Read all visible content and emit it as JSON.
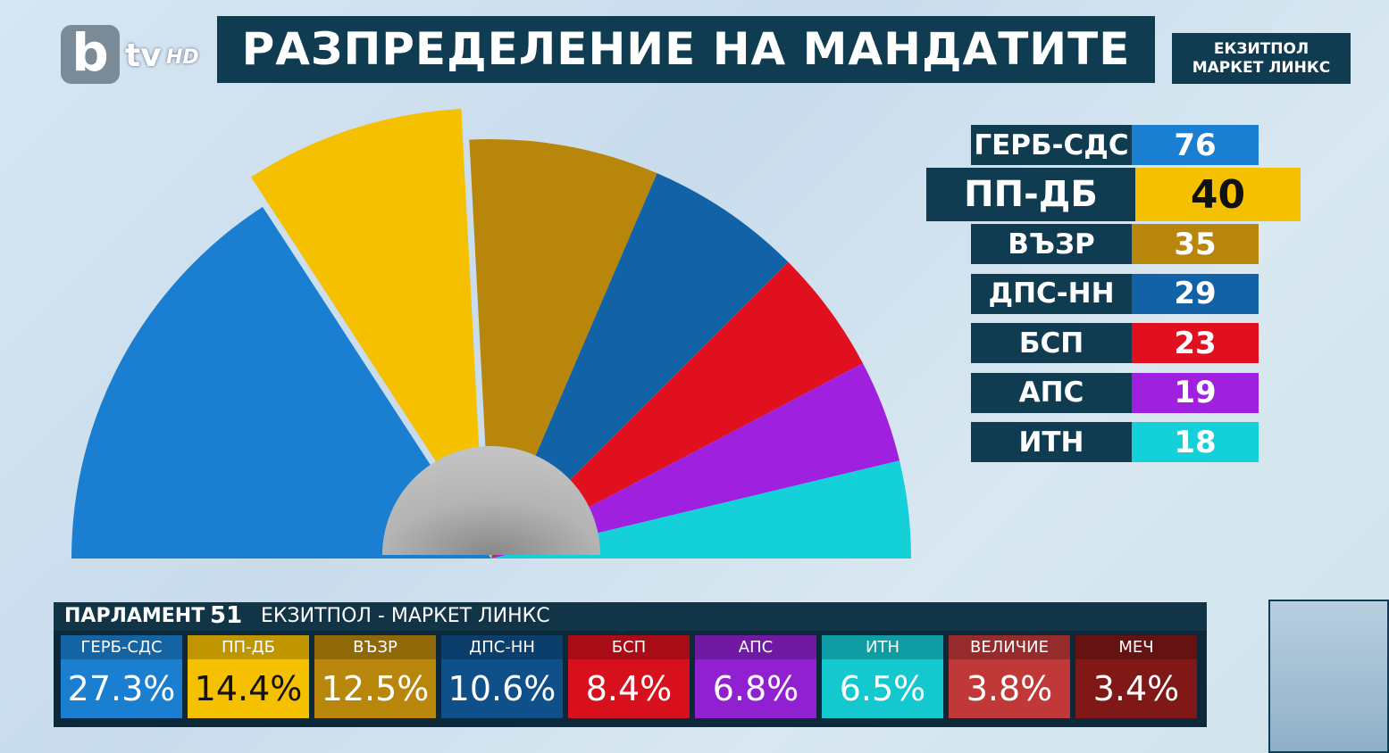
{
  "header": {
    "logo": "b",
    "logo_suffix": "tv",
    "logo_hd": "HD",
    "title": "РАЗПРЕДЕЛЕНИЕ НА МАНДАТИТЕ",
    "badge": [
      "ЕКЗИТПОЛ",
      "МАРКЕТ ЛИНКС"
    ]
  },
  "chart_data": {
    "type": "pie",
    "half": true,
    "categories": [
      "ГЕРБ-СДС",
      "ПП-ДБ",
      "ВЪЗР",
      "ДПС-НН",
      "БСП",
      "АПС",
      "ИТН"
    ],
    "values": [
      76,
      40,
      35,
      29,
      23,
      19,
      18
    ],
    "colors": [
      "#1a7fd0",
      "#f5c000",
      "#b8860b",
      "#1262a8",
      "#e0101e",
      "#a020e0",
      "#14d0d8"
    ]
  },
  "ticker": {
    "label": "ПАРЛАМЕНТ",
    "number": "51",
    "source": "ЕКЗИТПОЛ - МАРКЕТ ЛИНКС",
    "items": [
      {
        "name": "ГЕРБ-СДС",
        "share": "27.3%",
        "color": "#1a7fd0"
      },
      {
        "name": "ПП-ДБ",
        "share": "14.4%",
        "color": "#f5c000"
      },
      {
        "name": "ВЪЗР",
        "share": "12.5%",
        "color": "#b8860b"
      },
      {
        "name": "ДПС-НН",
        "share": "10.6%",
        "color": "#10508a"
      },
      {
        "name": "БСП",
        "share": "8.4%",
        "color": "#d8101e"
      },
      {
        "name": "АПС",
        "share": "6.8%",
        "color": "#9020d0"
      },
      {
        "name": "ИТН",
        "share": "6.5%",
        "color": "#14c8d0"
      },
      {
        "name": "ВЕЛИЧИЕ",
        "share": "3.8%",
        "color": "#c03838"
      },
      {
        "name": "МЕЧ",
        "share": "3.4%",
        "color": "#801818"
      }
    ]
  }
}
